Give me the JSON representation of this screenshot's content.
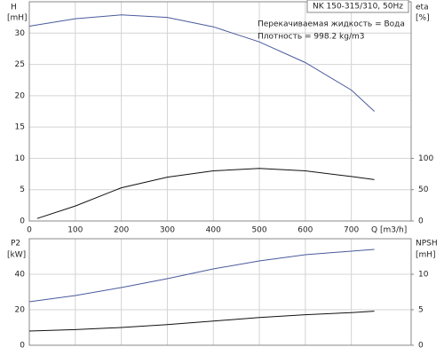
{
  "chart_data": [
    {
      "type": "line",
      "title": "NK 150-315/310, 50Hz",
      "annotations": [
        "Перекачиваемая жидкость = Вода",
        "Плотность = 998.2 kg/m3"
      ],
      "ylabel": "H",
      "yunit": "[mH]",
      "y2label": "eta",
      "y2unit": "[%]",
      "xlabel": "Q",
      "xunit": "[m3/h]",
      "xlim": [
        0,
        830
      ],
      "xticks": [
        0,
        100,
        200,
        300,
        400,
        500,
        600,
        700
      ],
      "ylim": [
        0,
        35
      ],
      "yticks": [
        0,
        5,
        10,
        15,
        20,
        25,
        30
      ],
      "y2lim": [
        0,
        350
      ],
      "y2ticks": [
        0,
        50,
        100
      ],
      "grid": true,
      "series": [
        {
          "color": "#4a5a9c",
          "x": [
            0,
            100,
            200,
            300,
            400,
            500,
            600,
            700,
            750
          ],
          "values": [
            31.1,
            32.3,
            32.9,
            32.5,
            31.0,
            28.6,
            25.3,
            20.9,
            17.5
          ]
        },
        {
          "color": "#111111",
          "axis": "y2",
          "x": [
            17,
            100,
            200,
            300,
            400,
            500,
            600,
            700,
            750
          ],
          "values": [
            4,
            24,
            53,
            70,
            80,
            84,
            80,
            71,
            66
          ]
        }
      ]
    },
    {
      "type": "line",
      "ylabel": "P2",
      "yunit": "[kW]",
      "y2label": "NPSH",
      "y2unit": "[mH]",
      "xlim": [
        0,
        830
      ],
      "ylim": [
        0,
        60
      ],
      "yticks": [
        0,
        20,
        40
      ],
      "y2lim": [
        0,
        15
      ],
      "y2ticks": [
        0,
        5,
        10
      ],
      "grid": true,
      "series": [
        {
          "color": "#4a5a9c",
          "x": [
            0,
            100,
            200,
            300,
            400,
            500,
            600,
            700,
            750
          ],
          "values": [
            24.5,
            28,
            32.5,
            37.5,
            43,
            47.5,
            51,
            53,
            54
          ]
        },
        {
          "color": "#111111",
          "axis": "y2",
          "x": [
            0,
            100,
            200,
            300,
            400,
            500,
            600,
            700,
            750
          ],
          "values": [
            2.0,
            2.2,
            2.5,
            2.9,
            3.4,
            3.9,
            4.3,
            4.6,
            4.8
          ]
        }
      ]
    }
  ]
}
